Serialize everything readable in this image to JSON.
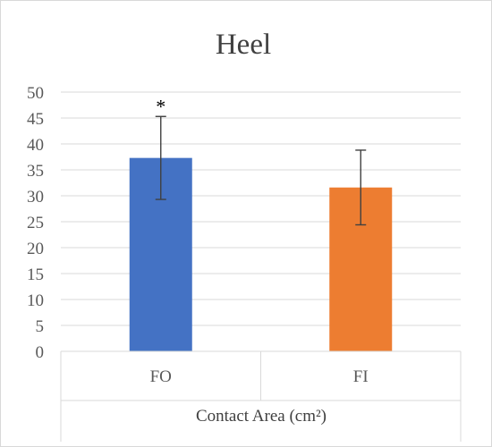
{
  "chart_data": {
    "type": "bar",
    "title": "Heel",
    "xlabel": "Contact Area (cm²)",
    "ylabel": "",
    "categories": [
      "FO",
      "FI"
    ],
    "values": [
      37.3,
      31.6
    ],
    "error": [
      8.0,
      7.2
    ],
    "annotations": [
      {
        "category": "FO",
        "text": "*"
      }
    ],
    "ylim": [
      0,
      50
    ],
    "ytick_step": 5,
    "grid": true,
    "colors": [
      "#4472C4",
      "#ED7D31"
    ]
  }
}
